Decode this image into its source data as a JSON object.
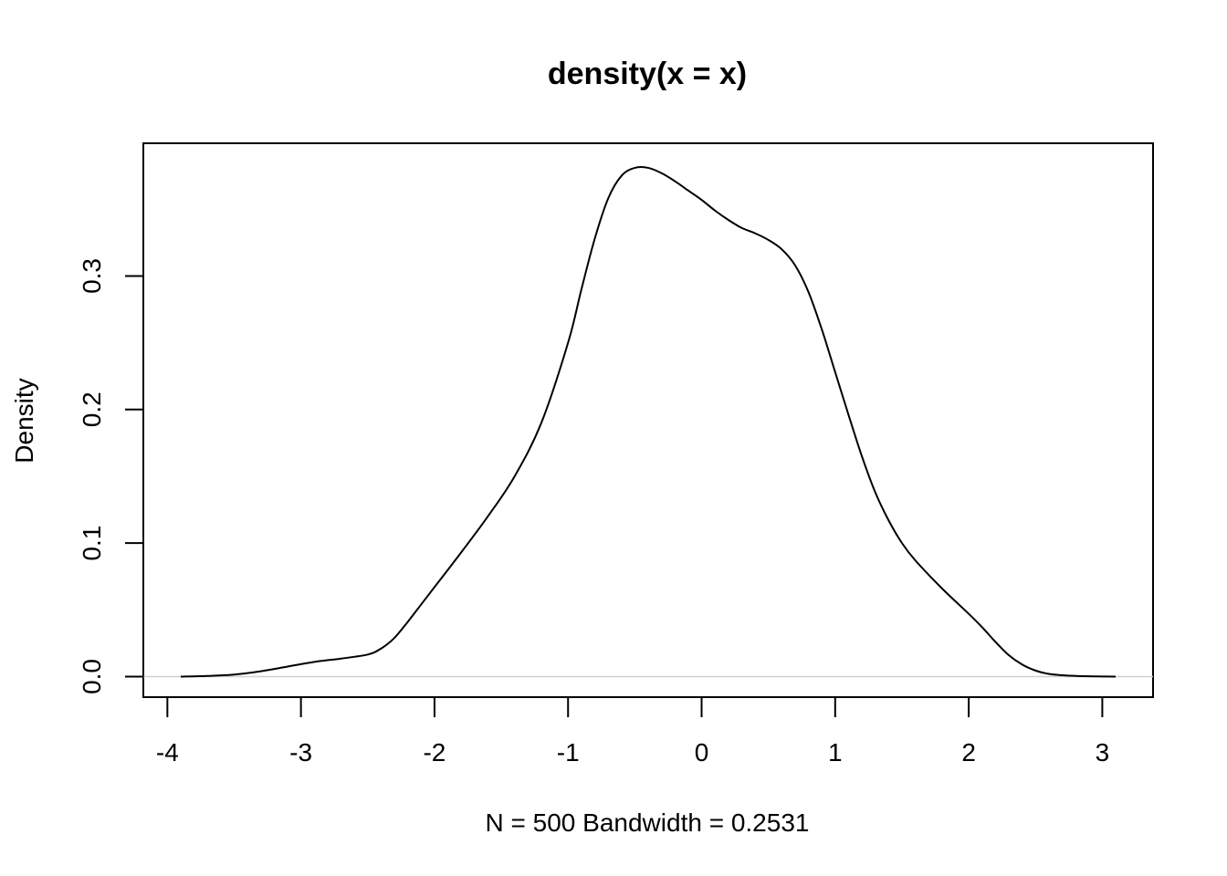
{
  "chart_data": {
    "type": "line",
    "title": "density(x = x)",
    "xlabel": "N = 500   Bandwidth = 0.2531",
    "ylabel": "Density",
    "xlim": [
      -4.18,
      3.38
    ],
    "ylim": [
      -0.0154,
      0.3994
    ],
    "x_ticks": [
      -4,
      -3,
      -2,
      -1,
      0,
      1,
      2,
      3
    ],
    "x_tick_labels": [
      "-4",
      "-3",
      "-2",
      "-1",
      "0",
      "1",
      "2",
      "3"
    ],
    "y_ticks": [
      0.0,
      0.1,
      0.2,
      0.3
    ],
    "y_tick_labels": [
      "0.0",
      "0.1",
      "0.2",
      "0.3"
    ],
    "grid": false,
    "baseline_y": 0,
    "series": [
      {
        "x": [
          -3.9,
          -3.7,
          -3.5,
          -3.3,
          -3.1,
          -2.9,
          -2.7,
          -2.5,
          -2.4,
          -2.3,
          -2.2,
          -2.1,
          -2.0,
          -1.8,
          -1.6,
          -1.4,
          -1.2,
          -1.0,
          -0.9,
          -0.8,
          -0.7,
          -0.6,
          -0.5,
          -0.4,
          -0.3,
          -0.2,
          -0.1,
          0.0,
          0.1,
          0.2,
          0.3,
          0.4,
          0.5,
          0.6,
          0.7,
          0.8,
          0.9,
          1.0,
          1.1,
          1.2,
          1.3,
          1.4,
          1.5,
          1.6,
          1.8,
          2.0,
          2.1,
          2.2,
          2.3,
          2.4,
          2.5,
          2.6,
          2.7,
          2.8,
          2.9,
          3.0,
          3.1
        ],
        "y": [
          0.0,
          0.0005,
          0.0015,
          0.004,
          0.0075,
          0.011,
          0.0135,
          0.0165,
          0.021,
          0.029,
          0.041,
          0.054,
          0.067,
          0.093,
          0.12,
          0.15,
          0.19,
          0.25,
          0.29,
          0.328,
          0.358,
          0.375,
          0.381,
          0.381,
          0.377,
          0.371,
          0.364,
          0.357,
          0.349,
          0.342,
          0.336,
          0.332,
          0.327,
          0.32,
          0.308,
          0.288,
          0.26,
          0.228,
          0.196,
          0.165,
          0.138,
          0.117,
          0.1,
          0.087,
          0.066,
          0.047,
          0.037,
          0.026,
          0.016,
          0.009,
          0.0045,
          0.002,
          0.001,
          0.0005,
          0.0002,
          0.0001,
          0.0
        ]
      }
    ]
  }
}
